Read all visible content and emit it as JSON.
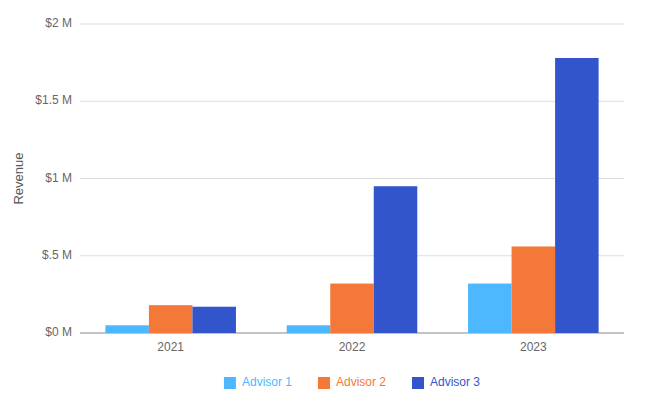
{
  "chart_data": {
    "type": "bar",
    "categories": [
      "2021",
      "2022",
      "2023"
    ],
    "series": [
      {
        "name": "Advisor 1",
        "color": "#4db8ff",
        "values": [
          0.05,
          0.05,
          0.32
        ]
      },
      {
        "name": "Advisor 2",
        "color": "#f47838",
        "values": [
          0.18,
          0.32,
          0.56
        ]
      },
      {
        "name": "Advisor 3",
        "color": "#3355cc",
        "values": [
          0.17,
          0.95,
          1.78
        ]
      }
    ],
    "ylabel": "Revenue",
    "ylim": [
      0,
      2.0
    ],
    "yticks": [
      {
        "value": 0,
        "label": "$0 M"
      },
      {
        "value": 0.5,
        "label": "$.5 M"
      },
      {
        "value": 1.0,
        "label": "$1 M"
      },
      {
        "value": 1.5,
        "label": "$1.5 M"
      },
      {
        "value": 2.0,
        "label": "$2 M"
      }
    ],
    "grid": true,
    "legend": "bottom"
  }
}
